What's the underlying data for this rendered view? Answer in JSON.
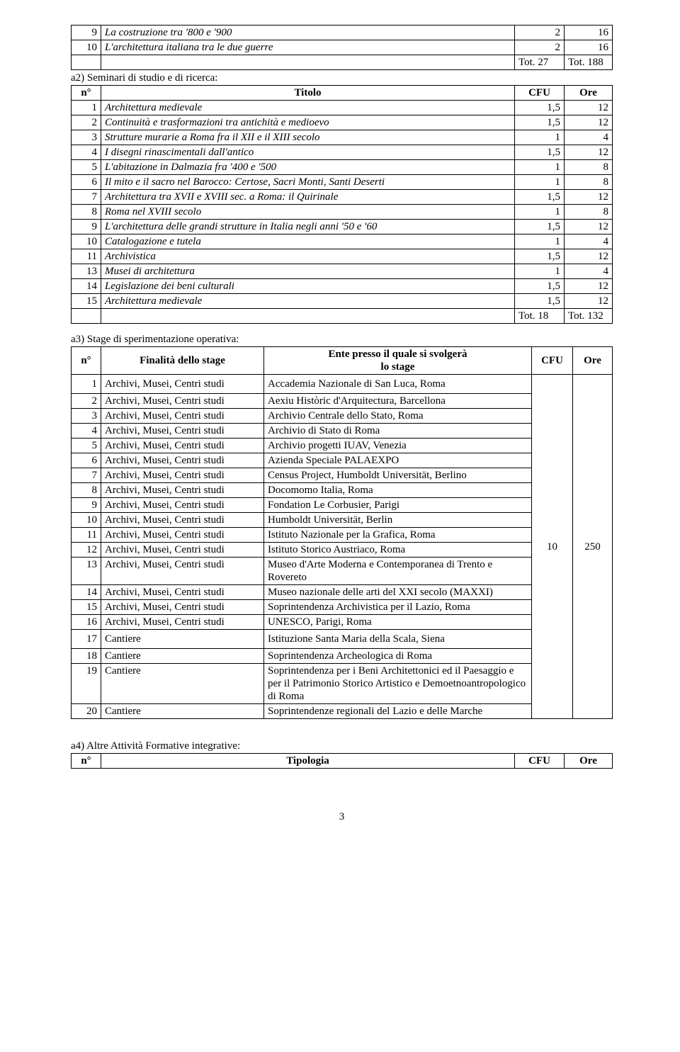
{
  "table1": {
    "row9": {
      "n": "9",
      "title": "La costruzione tra '800 e '900",
      "cfu": "2",
      "ore": "16"
    },
    "row10": {
      "n": "10",
      "title": "L'architettura italiana tra le due guerre",
      "cfu": "2",
      "ore": "16"
    },
    "tot": {
      "cfu": "Tot. 27",
      "ore": "Tot. 188"
    }
  },
  "a2": {
    "label": "a2) Seminari di studio e di ricerca:",
    "headers": {
      "n": "n°",
      "title": "Titolo",
      "cfu": "CFU",
      "ore": "Ore"
    },
    "rows": [
      {
        "n": "1",
        "title": "Architettura medievale",
        "cfu": "1,5",
        "ore": "12"
      },
      {
        "n": "2",
        "title": "Continuità e trasformazioni tra antichità e medioevo",
        "cfu": "1,5",
        "ore": "12"
      },
      {
        "n": "3",
        "title": "Strutture murarie a Roma fra il XII e il XIII secolo",
        "cfu": "1",
        "ore": "4"
      },
      {
        "n": "4",
        "title": "I disegni rinascimentali dall'antico",
        "cfu": "1,5",
        "ore": "12"
      },
      {
        "n": "5",
        "title": "L'abitazione in Dalmazia fra '400 e '500",
        "cfu": "1",
        "ore": "8"
      },
      {
        "n": "6",
        "title": "Il mito e il sacro nel Barocco: Certose, Sacri Monti, Santi Deserti",
        "cfu": "1",
        "ore": "8"
      },
      {
        "n": "7",
        "title": "Architettura tra XVII e XVIII sec. a Roma: il Quirinale",
        "cfu": "1,5",
        "ore": "12"
      },
      {
        "n": "8",
        "title": "Roma nel XVIII secolo",
        "cfu": "1",
        "ore": "8"
      },
      {
        "n": "9",
        "title": "L'architettura delle grandi strutture in Italia negli anni '50 e '60",
        "cfu": "1,5",
        "ore": "12"
      },
      {
        "n": "10",
        "title": "Catalogazione e tutela",
        "cfu": "1",
        "ore": "4"
      },
      {
        "n": "11",
        "title": "Archivistica",
        "cfu": "1,5",
        "ore": "12"
      },
      {
        "n": "13",
        "title": "Musei di architettura",
        "cfu": "1",
        "ore": "4"
      },
      {
        "n": "14",
        "title": "Legislazione dei beni culturali",
        "cfu": "1,5",
        "ore": "12"
      },
      {
        "n": "15",
        "title": "Architettura medievale",
        "cfu": "1,5",
        "ore": "12"
      }
    ],
    "tot": {
      "cfu": "Tot. 18",
      "ore": "Tot. 132"
    }
  },
  "a3": {
    "label": "a3) Stage di sperimentazione operativa:",
    "headers": {
      "n": "n°",
      "fin": "Finalità dello stage",
      "ente": "Ente presso il quale si svolgerà\nlo stage",
      "cfu": "CFU",
      "ore": "Ore"
    },
    "rows": [
      {
        "n": "1",
        "fin": "Archivi, Musei, Centri studi",
        "ente": "Accademia Nazionale di San Luca, Roma"
      },
      {
        "n": "2",
        "fin": "Archivi, Musei, Centri studi",
        "ente": "Aexiu Històric d'Arquitectura, Barcellona"
      },
      {
        "n": "3",
        "fin": "Archivi, Musei, Centri studi",
        "ente": "Archivio Centrale dello Stato, Roma"
      },
      {
        "n": "4",
        "fin": "Archivi, Musei, Centri studi",
        "ente": "Archivio di Stato di Roma"
      },
      {
        "n": "5",
        "fin": "Archivi, Musei, Centri studi",
        "ente": "Archivio progetti IUAV, Venezia"
      },
      {
        "n": "6",
        "fin": "Archivi, Musei, Centri studi",
        "ente": "Azienda Speciale PALAEXPO"
      },
      {
        "n": "7",
        "fin": "Archivi, Musei, Centri studi",
        "ente": "Census Project, Humboldt Universität, Berlino"
      },
      {
        "n": "8",
        "fin": "Archivi, Musei, Centri studi",
        "ente": "Docomomo Italia, Roma"
      },
      {
        "n": "9",
        "fin": "Archivi, Musei, Centri studi",
        "ente": "Fondation Le Corbusier, Parigi"
      },
      {
        "n": "10",
        "fin": "Archivi, Musei, Centri studi",
        "ente": "Humboldt Universität, Berlin"
      },
      {
        "n": "11",
        "fin": "Archivi, Musei, Centri studi",
        "ente": "Istituto Nazionale per la Grafica, Roma"
      },
      {
        "n": "12",
        "fin": "Archivi, Musei, Centri studi",
        "ente": "Istituto Storico Austriaco, Roma"
      },
      {
        "n": "13",
        "fin": "Archivi, Musei, Centri studi",
        "ente": "Museo d'Arte Moderna e Contemporanea di Trento e Rovereto"
      },
      {
        "n": "14",
        "fin": "Archivi, Musei, Centri studi",
        "ente": "Museo nazionale delle arti del XXI secolo (MAXXI)"
      },
      {
        "n": "15",
        "fin": "Archivi, Musei, Centri studi",
        "ente": "Soprintendenza Archivistica per il Lazio, Roma"
      },
      {
        "n": "16",
        "fin": "Archivi, Musei, Centri studi",
        "ente": "UNESCO, Parigi, Roma"
      },
      {
        "n": "17",
        "fin": "Cantiere",
        "ente": "Istituzione Santa Maria della Scala, Siena"
      },
      {
        "n": "18",
        "fin": "Cantiere",
        "ente": "Soprintendenza Archeologica di Roma"
      },
      {
        "n": "19",
        "fin": "Cantiere",
        "ente": "Soprintendenza per i Beni Architettonici ed il Paesaggio e per il Patrimonio Storico Artistico e Demoetnoantropologico di Roma"
      },
      {
        "n": "20",
        "fin": "Cantiere",
        "ente": "Soprintendenze regionali del Lazio e delle Marche"
      }
    ],
    "cfu": "10",
    "ore": "250"
  },
  "a4": {
    "label": "a4) Altre Attività Formative integrative:",
    "headers": {
      "n": "n°",
      "tip": "Tipologia",
      "cfu": "CFU",
      "ore": "Ore"
    }
  },
  "pagenum": "3"
}
